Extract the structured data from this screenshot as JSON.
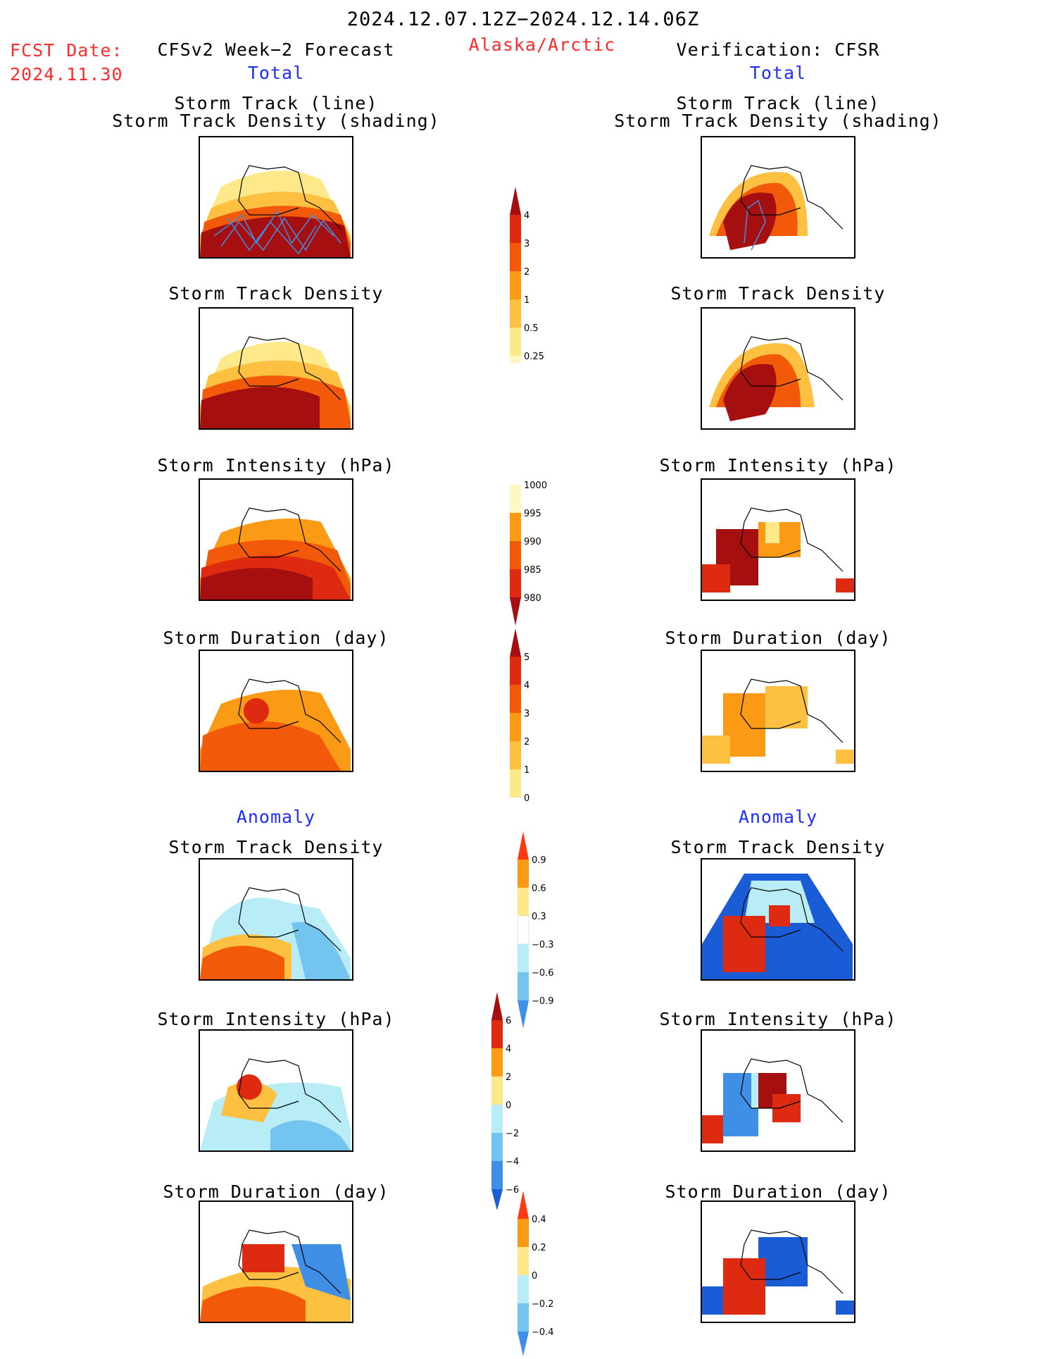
{
  "header": {
    "date_range": "2024.12.07.12Z−2024.12.14.06Z",
    "fcst_label": "FCST Date:",
    "fcst_date": "2024.11.30",
    "region": "Alaska/Arctic",
    "left_title": "CFSv2 Week−2 Forecast",
    "right_title": "Verification: CFSR",
    "total_left": "Total",
    "total_right": "Total"
  },
  "sections": {
    "anomaly_left": "Anomaly",
    "anomaly_right": "Anomaly"
  },
  "panel_titles": {
    "track_line": "Storm Track (line)",
    "track_density_shading": "Storm Track Density (shading)",
    "track_density": "Storm Track Density",
    "intensity": "Storm Intensity (hPa)",
    "duration": "Storm Duration (day)"
  },
  "colorbars": {
    "density": {
      "ticks": [
        "4",
        "3",
        "2",
        "1",
        "0.5",
        "0.25"
      ]
    },
    "intensity": {
      "ticks": [
        "1000",
        "995",
        "990",
        "985",
        "980"
      ]
    },
    "duration": {
      "ticks": [
        "5",
        "4",
        "3",
        "2",
        "1",
        "0"
      ]
    },
    "anom_density": {
      "ticks": [
        "0.9",
        "0.6",
        "0.3",
        "−0.3",
        "−0.6",
        "−0.9"
      ]
    },
    "anom_intensity": {
      "ticks": [
        "6",
        "4",
        "2",
        "0",
        "−2",
        "−4",
        "−6"
      ]
    },
    "anom_duration": {
      "ticks": [
        "0.4",
        "0.2",
        "0",
        "−0.2",
        "−0.4"
      ]
    }
  },
  "colors": {
    "dark_red": "#a50f0f",
    "red": "#dd2a10",
    "orange_red": "#f25a0a",
    "orange": "#fb9a14",
    "light_orange": "#fdc040",
    "yellow": "#fde98a",
    "pale_yellow": "#fff8c4",
    "light_blue": "#b8ecf7",
    "mid_blue": "#74c4f0",
    "blue": "#3f8fe6",
    "dark_blue": "#1a5bd6",
    "title_red": "#ff2a2a",
    "title_blue": "#1f2dff"
  }
}
